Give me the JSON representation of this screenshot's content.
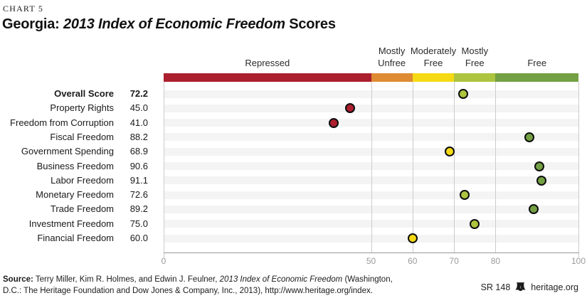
{
  "header": {
    "kicker": "CHART 5",
    "title": {
      "prefix": "Georgia: ",
      "italic": "2013 Index of Economic Freedom",
      "suffix": " Scores"
    }
  },
  "chart_data": {
    "type": "scatter",
    "subtype": "horizontal-dot-plot",
    "xlim": [
      0,
      100
    ],
    "xticks": [
      0,
      50,
      60,
      70,
      80,
      100
    ],
    "grid": "vertical-at-band-boundaries",
    "bands": [
      {
        "label_lines": [
          "Repressed"
        ],
        "min": 0,
        "max": 50,
        "color": "#ac1f2e"
      },
      {
        "label_lines": [
          "Mostly",
          "Unfree"
        ],
        "min": 50,
        "max": 60,
        "color": "#de8b33"
      },
      {
        "label_lines": [
          "Moderately",
          "Free"
        ],
        "min": 60,
        "max": 70,
        "color": "#f5d914"
      },
      {
        "label_lines": [
          "Mostly",
          "Free"
        ],
        "min": 70,
        "max": 80,
        "color": "#acc43e"
      },
      {
        "label_lines": [
          "Free"
        ],
        "min": 80,
        "max": 100,
        "color": "#73a043"
      }
    ],
    "rows": [
      {
        "label": "Overall Score",
        "value": 72.2,
        "bold": true
      },
      {
        "label": "Property Rights",
        "value": 45.0
      },
      {
        "label": "Freedom from Corruption",
        "value": 41.0
      },
      {
        "label": "Fiscal Freedom",
        "value": 88.2
      },
      {
        "label": "Government Spending",
        "value": 68.9
      },
      {
        "label": "Business Freedom",
        "value": 90.6
      },
      {
        "label": "Labor Freedom",
        "value": 91.1
      },
      {
        "label": "Monetary Freedom",
        "value": 72.6
      },
      {
        "label": "Trade Freedom",
        "value": 89.2
      },
      {
        "label": "Investment Freedom",
        "value": 75.0
      },
      {
        "label": "Financial Freedom",
        "value": 60.0
      }
    ]
  },
  "footer": {
    "source": {
      "label": "Source:",
      "authors": " Terry Miller, Kim R. Holmes, and Edwin J. Feulner, ",
      "work": "2013 Index of Economic Freedom",
      "rest": " (Washington, D.C.: The Heritage Foundation and Dow Jones & Company, Inc., 2013), http://www.heritage.org/index."
    },
    "report_id": "SR 148",
    "brand": "heritage.org",
    "bell_icon": "liberty-bell-icon"
  }
}
